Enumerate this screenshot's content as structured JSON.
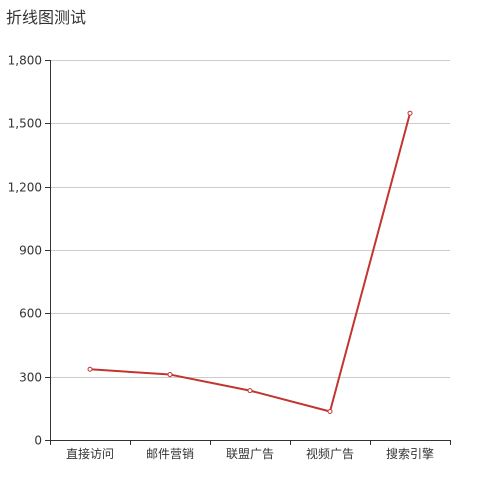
{
  "chart_data": {
    "type": "line",
    "title": "折线图测试",
    "categories": [
      "直接访问",
      "邮件营销",
      "联盟广告",
      "视频广告",
      "搜索引擎"
    ],
    "series": [
      {
        "values": [
          335,
          310,
          234,
          135,
          1548
        ]
      }
    ],
    "yticks": [
      "0",
      "300",
      "600",
      "900",
      "1,200",
      "1,500",
      "1,800"
    ],
    "ylim": [
      0,
      1800
    ],
    "grid": true,
    "legend": "none",
    "line_color": "#c23531",
    "grid_color": "#cccccc",
    "axis_color": "#333333"
  }
}
